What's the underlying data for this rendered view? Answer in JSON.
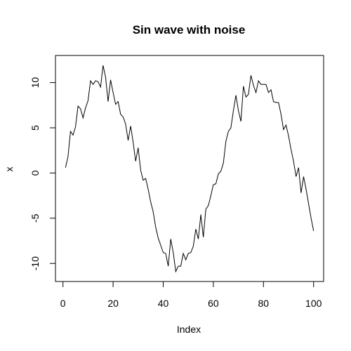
{
  "chart_data": {
    "type": "line",
    "title": "Sin wave with noise",
    "xlabel": "Index",
    "ylabel": "x",
    "xlim": [
      -3,
      104
    ],
    "ylim": [
      -12,
      13
    ],
    "x_ticks": [
      0,
      20,
      40,
      60,
      80,
      100
    ],
    "x_tick_labels": [
      "0",
      "20",
      "40",
      "60",
      "80",
      "100"
    ],
    "y_ticks": [
      -10,
      -5,
      0,
      5,
      10
    ],
    "y_tick_labels": [
      "-10",
      "-5",
      "0",
      "5",
      "10"
    ],
    "grid": false,
    "legend": "none",
    "line_color": "#000000",
    "series": [
      {
        "x": [
          1,
          2,
          3,
          4,
          5,
          6,
          7,
          8,
          9,
          10,
          11,
          12,
          13,
          14,
          15,
          16,
          17,
          18,
          19,
          20,
          21,
          22,
          23,
          24,
          25,
          26,
          27,
          28,
          29,
          30,
          31,
          32,
          33,
          34,
          35,
          36,
          37,
          38,
          39,
          40,
          41,
          42,
          43,
          44,
          45,
          46,
          47,
          48,
          49,
          50,
          51,
          52,
          53,
          54,
          55,
          56,
          57,
          58,
          59,
          60,
          61,
          62,
          63,
          64,
          65,
          66,
          67,
          68,
          69,
          70,
          71,
          72,
          73,
          74,
          75,
          76,
          77,
          78,
          79,
          80,
          81,
          82,
          83,
          84,
          85,
          86,
          87,
          88,
          89,
          90,
          91,
          92,
          93,
          94,
          95,
          96,
          97,
          98,
          99,
          100
        ],
        "values": [
          0.6,
          1.8,
          4.6,
          4.2,
          5.1,
          7.4,
          7.1,
          6.1,
          7.2,
          8.0,
          10.2,
          9.8,
          10.2,
          10.1,
          9.5,
          11.9,
          10.6,
          7.9,
          10.3,
          8.9,
          7.6,
          7.9,
          6.5,
          6.2,
          5.4,
          3.6,
          5.2,
          3.4,
          1.3,
          2.8,
          0.3,
          -0.8,
          -0.6,
          -1.8,
          -3.2,
          -4.3,
          -6.0,
          -7.2,
          -8.0,
          -8.8,
          -8.9,
          -10.3,
          -7.3,
          -8.8,
          -10.9,
          -10.3,
          -10.3,
          -8.9,
          -9.6,
          -8.9,
          -8.8,
          -8.1,
          -6.2,
          -7.3,
          -4.6,
          -7.1,
          -4.0,
          -3.6,
          -2.5,
          -1.3,
          -1.2,
          -0.1,
          0.2,
          1.1,
          3.5,
          4.6,
          5.0,
          6.9,
          8.6,
          6.9,
          5.7,
          9.6,
          8.4,
          8.7,
          10.8,
          9.7,
          8.9,
          10.2,
          9.8,
          9.8,
          9.8,
          8.9,
          9.2,
          7.9,
          7.8,
          7.8,
          6.5,
          4.8,
          5.3,
          4.1,
          2.6,
          1.3,
          -0.4,
          0.6,
          -2.2,
          -0.4,
          -1.8,
          -3.4,
          -5.0,
          -6.4
        ]
      }
    ]
  }
}
